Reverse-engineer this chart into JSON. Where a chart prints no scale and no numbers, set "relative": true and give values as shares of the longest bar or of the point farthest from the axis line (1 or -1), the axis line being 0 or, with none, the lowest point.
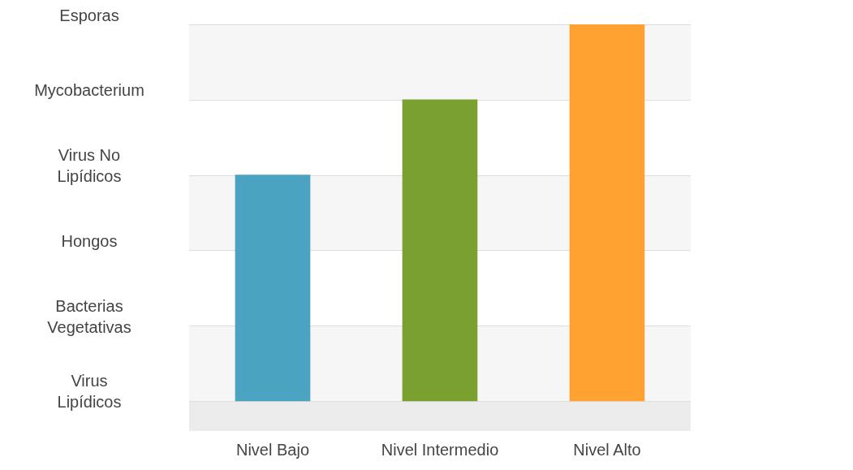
{
  "chart_data": {
    "type": "bar",
    "categories": [
      "Nivel Bajo",
      "Nivel Intermedio",
      "Nivel Alto"
    ],
    "values": [
      0.6,
      0.8,
      1
    ],
    "colors": [
      "#4aa3c0",
      "#7aa030",
      "#ffa232"
    ],
    "relative": true,
    "annotations": [
      "Esporas",
      "Mycobacterium",
      "Virus No Lipídicos",
      "Hongos",
      "Bacterias Vegetativas",
      "Virus Lipídicos"
    ],
    "bands": [
      {
        "axis": "y",
        "from": 0.8,
        "to": 1,
        "color": "#f6f6f6"
      },
      {
        "axis": "y",
        "from": 0.4,
        "to": 0.6,
        "color": "#f6f6f6"
      },
      {
        "axis": "y",
        "from": 0,
        "to": 0.2,
        "color": "#f6f6f6"
      },
      {
        "axis": "y",
        "from": -0.08,
        "to": 0,
        "color": "#ececec"
      }
    ],
    "grid": "y",
    "legend": false
  }
}
